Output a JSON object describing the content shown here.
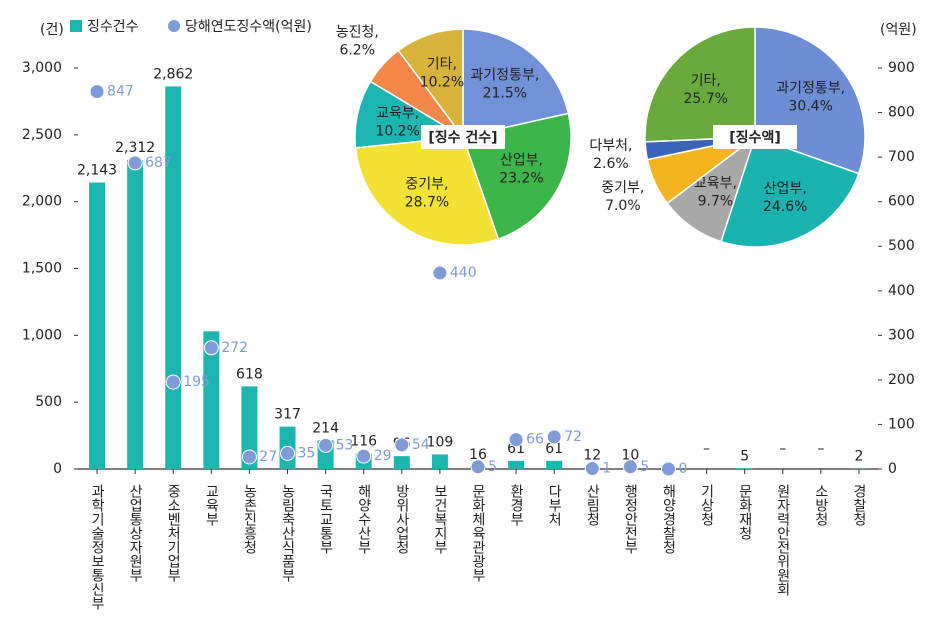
{
  "chart_data": [
    {
      "type": "bar",
      "y_label": "(건)",
      "y2_label": "(억원)",
      "categories": [
        "과학기술정보통신부",
        "산업통상자원부",
        "중소벤처기업부",
        "교육부",
        "농촌진흥청",
        "농림축산식품부",
        "국토교통부",
        "해양수산부",
        "방위사업청",
        "보건복지부",
        "문화체육관광부",
        "환경부",
        "다부처",
        "산림청",
        "행정안전부",
        "해양경찰청",
        "기상청",
        "문화재청",
        "원자력안전위원회",
        "소방청",
        "경찰청"
      ],
      "ylim": [
        0,
        3000
      ],
      "yticks": [
        0,
        500,
        {
          "value": 1000,
          "label": "1,000"
        },
        {
          "value": 1500,
          "label": "1,500"
        },
        {
          "value": 2000,
          "label": "2,000"
        },
        {
          "value": 2500,
          "label": "2,500"
        },
        {
          "value": 3000,
          "label": "3,000"
        }
      ],
      "y2lim": [
        0,
        900
      ],
      "y2ticks": [
        0,
        100,
        200,
        300,
        400,
        500,
        600,
        700,
        800,
        900
      ],
      "legend": "top-left",
      "series": [
        {
          "name": "징수건수",
          "color": "#1db5b0",
          "values": [
            2143,
            2312,
            2862,
            1030,
            618,
            317,
            214,
            116,
            96,
            109,
            16,
            61,
            61,
            12,
            10,
            null,
            null,
            5,
            null,
            null,
            2
          ],
          "value_labels": [
            "2,143",
            "2,312",
            "2,862",
            null,
            "618",
            "317",
            "214",
            "116",
            "96",
            "109",
            "16",
            "61",
            "61",
            "12",
            "10",
            null,
            "–",
            "5",
            "–",
            "–",
            "2"
          ]
        },
        {
          "name": "당해연도징수액(억원)",
          "type": "scatter",
          "axis": "y2",
          "color": "#7f9bd8",
          "values": [
            847,
            687,
            195,
            272,
            27,
            35,
            53,
            29,
            54,
            440,
            5,
            66,
            72,
            1,
            5,
            0,
            null,
            null,
            null,
            null,
            null
          ]
        }
      ]
    },
    {
      "type": "pie",
      "title": "[징수 건수]",
      "categories": [
        "과기정통부,",
        "산업부,",
        "중기부,",
        "교육부,",
        "농진청,",
        "기타,"
      ],
      "values": [
        21.5,
        23.2,
        28.7,
        10.2,
        6.2,
        10.2
      ],
      "value_labels": [
        "21.5%",
        "23.2%",
        "28.7%",
        "10.2%",
        "6.2%",
        "10.2%"
      ],
      "colors": [
        "#7391d8",
        "#3cb54a",
        "#f3e135",
        "#1cb5b0",
        "#f3884a",
        "#d8b33c"
      ]
    },
    {
      "type": "pie",
      "title": "[징수액]",
      "categories": [
        "과기정통부,",
        "산업부,",
        "교육부,",
        "중기부,",
        "다부처,",
        "기타,"
      ],
      "values": [
        30.4,
        24.6,
        9.7,
        7.0,
        2.6,
        25.7
      ],
      "value_labels": [
        "30.4%",
        "24.6%",
        "9.7%",
        "7.0%",
        "2.6%",
        "25.7%"
      ],
      "colors": [
        "#6d8dd4",
        "#1ab3b0",
        "#a8a8a8",
        "#f4b41f",
        "#3a64b8",
        "#6aaa3c"
      ]
    }
  ]
}
